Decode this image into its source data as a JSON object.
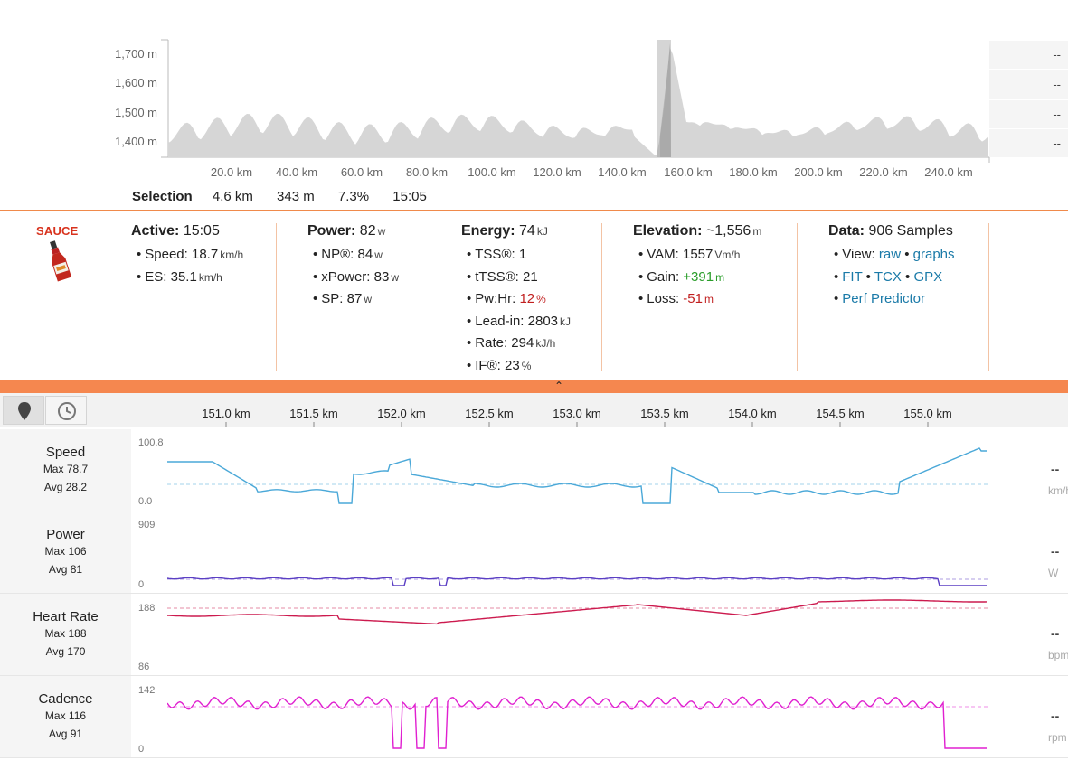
{
  "overview": {
    "y_labels": [
      "1,700 m",
      "1,600 m",
      "1,500 m",
      "1,400 m"
    ],
    "x_labels": [
      "20.0 km",
      "40.0 km",
      "60.0 km",
      "80.0 km",
      "100.0 km",
      "120.0 km",
      "140.0 km",
      "160.0 km",
      "180.0 km",
      "200.0 km",
      "220.0 km",
      "240.0 km"
    ],
    "side_values": [
      "--",
      "--",
      "--",
      "--"
    ]
  },
  "selection": {
    "label": "Selection",
    "distance": "4.6 km",
    "elevation": "343 m",
    "grade": "7.3%",
    "time": "15:05"
  },
  "logo": {
    "word": "SAUCE",
    "icon": "sauce-bottle-icon"
  },
  "stats": {
    "active": {
      "title": "Active:",
      "value": "15:05",
      "speed_label": "Speed:",
      "speed": "18.7",
      "speed_unit": "km/h",
      "es_label": "ES:",
      "es": "35.1",
      "es_unit": "km/h"
    },
    "power": {
      "title": "Power:",
      "value": "82",
      "unit": "w",
      "np_label": "NP®:",
      "np": "84",
      "np_unit": "w",
      "xp_label": "xPower:",
      "xp": "83",
      "xp_unit": "w",
      "sp_label": "SP:",
      "sp": "87",
      "sp_unit": "w"
    },
    "energy": {
      "title": "Energy:",
      "value": "74",
      "unit": "kJ",
      "tss_label": "TSS®:",
      "tss": "1",
      "ttss_label": "tTSS®:",
      "ttss": "21",
      "pwhr_label": "Pw:Hr:",
      "pwhr": "12",
      "pwhr_unit": "%",
      "leadin_label": "Lead-in:",
      "leadin": "2803",
      "leadin_unit": "kJ",
      "rate_label": "Rate:",
      "rate": "294",
      "rate_unit": "kJ/h",
      "if_label": "IF®:",
      "if": "23",
      "if_unit": "%"
    },
    "elevation": {
      "title": "Elevation:",
      "value": "~1,556",
      "unit": "m",
      "vam_label": "VAM:",
      "vam": "1557",
      "vam_unit": "Vm/h",
      "gain_label": "Gain:",
      "gain": "+391",
      "gain_unit": "m",
      "loss_label": "Loss:",
      "loss": "-51",
      "loss_unit": "m"
    },
    "data": {
      "title": "Data:",
      "value": "906 Samples",
      "view_label": "View:",
      "raw": "raw",
      "graphs": "graphs",
      "fit": "FIT",
      "tcx": "TCX",
      "gpx": "GPX",
      "perf": "Perf Predictor",
      "sep": "•"
    }
  },
  "toolbar": {
    "distance_icon": "map-pin-icon",
    "time_icon": "clock-icon",
    "x_labels": [
      "151.0 km",
      "151.5 km",
      "152.0 km",
      "152.5 km",
      "153.0 km",
      "153.5 km",
      "154.0 km",
      "154.5 km",
      "155.0 km"
    ]
  },
  "streams": [
    {
      "name": "Speed",
      "max": "Max 78.7",
      "avg": "Avg 28.2",
      "ymax": "100.8",
      "ymin": "0.0",
      "dash": "--",
      "unit": "km/h",
      "color": "#4aa8d8"
    },
    {
      "name": "Power",
      "max": "Max 106",
      "avg": "Avg 81",
      "ymax": "909",
      "ymin": "0",
      "dash": "--",
      "unit": "W",
      "color": "#5b3fc4"
    },
    {
      "name": "Heart Rate",
      "max": "Max 188",
      "avg": "Avg 170",
      "ymax": "188",
      "ymin": "86",
      "dash": "--",
      "unit": "bpm",
      "color": "#cc1a4e"
    },
    {
      "name": "Cadence",
      "max": "Max 116",
      "avg": "Avg 91",
      "ymax": "142",
      "ymin": "0",
      "dash": "--",
      "unit": "rpm",
      "color": "#e020d0"
    }
  ],
  "colors": {
    "accent": "#f5874f",
    "divider": "#f3c3a4",
    "link": "#1a7aa8",
    "gain": "#2a9d2a",
    "loss": "#c11f1f"
  }
}
